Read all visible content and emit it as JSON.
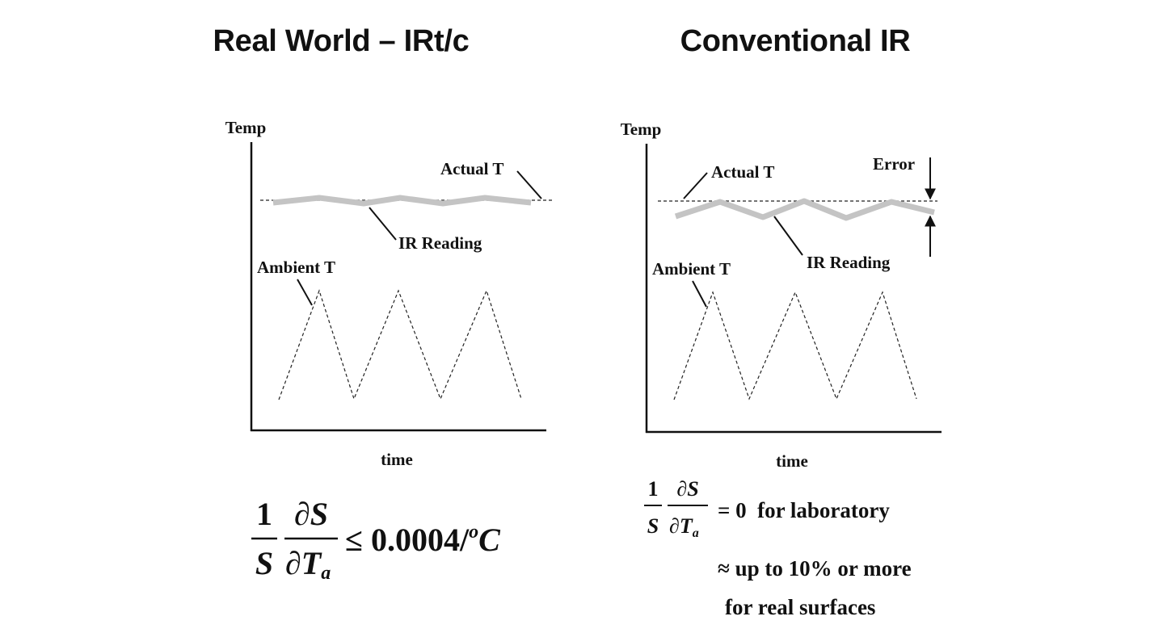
{
  "left_panel": {
    "title": "Real World – IRt/c",
    "y_axis_label": "Temp",
    "x_axis_label": "time",
    "actual_label": "Actual T",
    "ir_reading_label": "IR Reading",
    "ambient_label": "Ambient T",
    "formula": {
      "numerator_1": "1",
      "denominator_1": "S",
      "numerator_2": "∂S",
      "denominator_2": "∂T",
      "subscript": "a",
      "relation": "≤ 0.0004/",
      "superscript": "o",
      "unit": "C"
    }
  },
  "right_panel": {
    "title": "Conventional IR",
    "y_axis_label": "Temp",
    "x_axis_label": "time",
    "actual_label": "Actual T",
    "error_label": "Error",
    "ir_reading_label": "IR Reading",
    "ambient_label": "Ambient T",
    "formula": {
      "numerator_1": "1",
      "denominator_1": "S",
      "numerator_2": "∂S",
      "denominator_2": "∂T",
      "subscript": "a",
      "relation": "= 0  for laboratory"
    },
    "note_line_1": "≈ up to 10% or more",
    "note_line_2": "for real surfaces"
  },
  "colors": {
    "axis": "#111111",
    "ir_reading": "#c4c4c4",
    "dashed": "#222222"
  }
}
